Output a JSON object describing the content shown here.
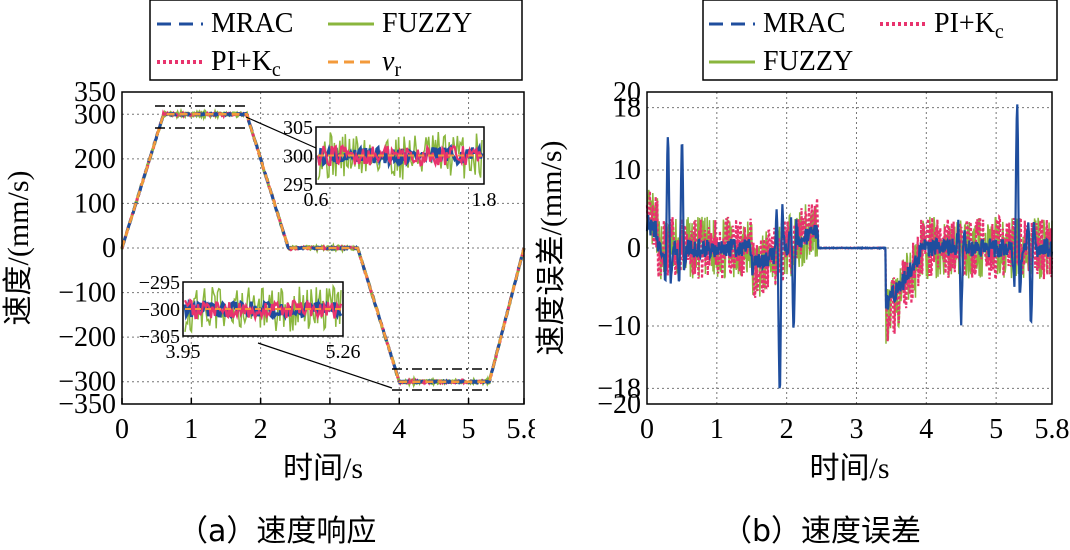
{
  "colors": {
    "mrac": "#1f4e9e",
    "pik": "#e8336d",
    "fuzzy": "#8ab63d",
    "vr": "#f39a3b"
  },
  "chart_data": [
    {
      "type": "line",
      "caption": "（a）速度响应",
      "xlabel": "时间/s",
      "ylabel": "速度/(mm/s)",
      "xticks": [
        "0",
        "1",
        "2",
        "3",
        "4",
        "5",
        "5.8"
      ],
      "xtick_values": [
        0,
        1,
        2,
        3,
        4,
        5,
        5.8
      ],
      "yticks": [
        "350",
        "300",
        "200",
        "100",
        "0",
        "−100",
        "−200",
        "−300",
        "−350"
      ],
      "ytick_values": [
        350,
        300,
        200,
        100,
        0,
        -100,
        -200,
        -300,
        -350
      ],
      "xlim": [
        0,
        5.8
      ],
      "ylim": [
        -350,
        350
      ],
      "grid": true,
      "legend_position": "top",
      "legend": [
        {
          "key": "mrac",
          "label": "MRAC"
        },
        {
          "key": "fuzzy",
          "label": "FUZZY"
        },
        {
          "key": "pik",
          "label": "PI+K",
          "sub": "c"
        },
        {
          "key": "vr",
          "label": "v",
          "sub": "r"
        }
      ],
      "reference": {
        "x": [
          0,
          0.6,
          1.8,
          2.4,
          3.4,
          4.0,
          5.3,
          5.8
        ],
        "y": [
          0,
          300,
          300,
          0,
          0,
          -300,
          -300,
          0
        ]
      },
      "insets": [
        {
          "name": "inset-top",
          "x_range": [
            0.6,
            1.8
          ],
          "y_range": [
            295,
            305
          ],
          "xticks": [
            "0.6",
            "1.8"
          ],
          "yticks": [
            "305",
            "300",
            "295"
          ],
          "ytick_values": [
            305,
            300,
            295
          ]
        },
        {
          "name": "inset-bottom",
          "x_range": [
            3.95,
            5.26
          ],
          "y_range": [
            -305,
            -295
          ],
          "xticks": [
            "3.95",
            "5.26"
          ],
          "yticks": [
            "−295",
            "−300",
            "−305"
          ],
          "ytick_values": [
            -295,
            -300,
            -305
          ]
        }
      ]
    },
    {
      "type": "line",
      "caption": "（b）速度误差",
      "xlabel": "时间/s",
      "ylabel": "速度误差/(mm/s)",
      "xticks": [
        "0",
        "1",
        "2",
        "3",
        "4",
        "5",
        "5.8"
      ],
      "xtick_values": [
        0,
        1,
        2,
        3,
        4,
        5,
        5.8
      ],
      "yticks": [
        "20",
        "18",
        "10",
        "0",
        "−10",
        "−18",
        "−20"
      ],
      "ytick_values": [
        20,
        18,
        10,
        0,
        -10,
        -18,
        -20
      ],
      "xlim": [
        0,
        5.8
      ],
      "ylim": [
        -20,
        20
      ],
      "grid": true,
      "legend_position": "top",
      "legend": [
        {
          "key": "mrac",
          "label": "MRAC"
        },
        {
          "key": "pik",
          "label": "PI+K",
          "sub": "c"
        },
        {
          "key": "fuzzy",
          "label": "FUZZY"
        }
      ],
      "series": [
        {
          "key": "mrac",
          "name": "MRAC",
          "peaks": {
            "x": [
              0.3,
              0.5,
              1.9,
              2.1,
              4.5,
              5.3,
              5.5
            ],
            "y": [
              15,
              13,
              -18,
              -10,
              -9,
              18,
              -10
            ]
          }
        },
        {
          "key": "pik",
          "name": "PI+Kc",
          "amplitude": 4
        },
        {
          "key": "fuzzy",
          "name": "FUZZY",
          "amplitude": 4
        }
      ]
    }
  ]
}
